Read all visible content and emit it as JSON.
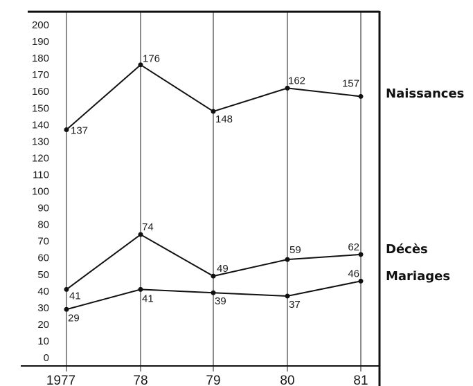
{
  "chart_data": {
    "type": "line",
    "title": "",
    "xlabel": "",
    "ylabel": "",
    "categories": [
      "1977",
      "78",
      "79",
      "80",
      "81"
    ],
    "ylim": [
      0,
      200
    ],
    "yticks": [
      0,
      10,
      20,
      30,
      40,
      50,
      60,
      70,
      80,
      90,
      100,
      110,
      120,
      130,
      140,
      150,
      160,
      170,
      180,
      190,
      200
    ],
    "grid": "vertical",
    "legend": "right",
    "series": [
      {
        "name": "Naissances",
        "values": [
          137,
          176,
          148,
          162,
          157
        ],
        "labels": [
          "137",
          "176",
          "148",
          "162",
          "157"
        ]
      },
      {
        "name": "Décès",
        "values": [
          41,
          74,
          49,
          59,
          62
        ],
        "labels": [
          "41",
          "74",
          "49",
          "59",
          "62"
        ]
      },
      {
        "name": "Mariages",
        "values": [
          29,
          41,
          39,
          37,
          46
        ],
        "labels": [
          "29",
          "41",
          "39",
          "37",
          "46"
        ]
      }
    ],
    "colors": {
      "ink": "#111111",
      "background": "#ffffff"
    }
  }
}
